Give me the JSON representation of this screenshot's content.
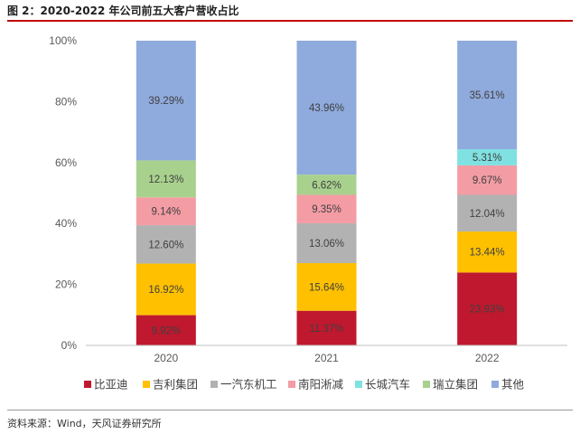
{
  "header": {
    "title": "图 2：2020-2022 年公司前五大客户营收占比"
  },
  "footer": {
    "source": "资料来源：Wind，天风证券研究所"
  },
  "chart_data": {
    "type": "bar",
    "stacked": true,
    "categories": [
      "2020",
      "2021",
      "2022"
    ],
    "ylim": [
      0,
      100
    ],
    "yticks": [
      "0%",
      "20%",
      "40%",
      "60%",
      "80%",
      "100%"
    ],
    "grid": false,
    "legend_position": "bottom",
    "series": [
      {
        "name": "比亚迪",
        "color": "#c0182e",
        "values": [
          9.92,
          11.37,
          23.93
        ],
        "labels": [
          "9.92%",
          "11.37%",
          "23.93%"
        ]
      },
      {
        "name": "吉利集团",
        "color": "#ffc000",
        "values": [
          16.92,
          15.64,
          13.44
        ],
        "labels": [
          "16.92%",
          "15.64%",
          "13.44%"
        ]
      },
      {
        "name": "一汽东机工",
        "color": "#b2b2b2",
        "values": [
          12.6,
          13.06,
          12.04
        ],
        "labels": [
          "12.60%",
          "13.06%",
          "12.04%"
        ]
      },
      {
        "name": "南阳淅减",
        "color": "#f39ca4",
        "values": [
          9.14,
          9.35,
          9.67
        ],
        "labels": [
          "9.14%",
          "9.35%",
          "9.67%"
        ]
      },
      {
        "name": "长城汽车",
        "color": "#7fe1e1",
        "values": [
          0,
          0,
          5.31
        ],
        "labels": [
          "",
          "",
          "5.31%"
        ]
      },
      {
        "name": "瑞立集团",
        "color": "#a9d18e",
        "values": [
          12.13,
          6.62,
          0
        ],
        "labels": [
          "12.13%",
          "6.62%",
          ""
        ]
      },
      {
        "name": "其他",
        "color": "#8faadc",
        "values": [
          39.29,
          43.96,
          35.61
        ],
        "labels": [
          "39.29%",
          "43.96%",
          "35.61%"
        ]
      }
    ]
  }
}
